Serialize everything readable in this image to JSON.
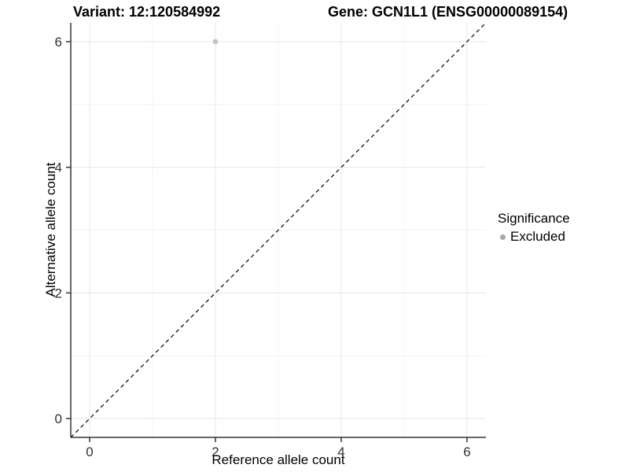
{
  "header": {
    "variant_title": "Variant: 12:120584992",
    "gene_title": "Gene: GCN1L1 (ENSG00000089154)"
  },
  "legend": {
    "title": "Significance",
    "items": [
      {
        "label": "Excluded",
        "swatch_color": "#a8a8a8"
      }
    ]
  },
  "chart_data": {
    "type": "scatter",
    "title_left": "Variant: 12:120584992",
    "title_right": "Gene: GCN1L1 (ENSG00000089154)",
    "xlabel": "Reference allele count",
    "ylabel": "Alternative allele count",
    "xlim": [
      -0.3,
      6.3
    ],
    "ylim": [
      -0.3,
      6.3
    ],
    "xticks": [
      0,
      2,
      4,
      6
    ],
    "yticks": [
      0,
      2,
      4,
      6
    ],
    "xminor": [
      1,
      3,
      5
    ],
    "yminor": [
      1,
      3,
      5
    ],
    "grid": "on",
    "legend_position": "right",
    "series": [
      {
        "name": "Excluded",
        "color": "#c4c4c4",
        "points": [
          {
            "x": 2,
            "y": 6
          }
        ]
      }
    ],
    "reference_line": {
      "type": "identity",
      "x1": -0.3,
      "y1": -0.3,
      "x2": 6.3,
      "y2": 6.3,
      "style": "dashed",
      "color": "#000000"
    },
    "colors": {
      "grid_major": "#e7e7e7",
      "grid_minor": "#f3f3f3",
      "axis_line": "#333333",
      "tick_text": "#303030"
    }
  }
}
